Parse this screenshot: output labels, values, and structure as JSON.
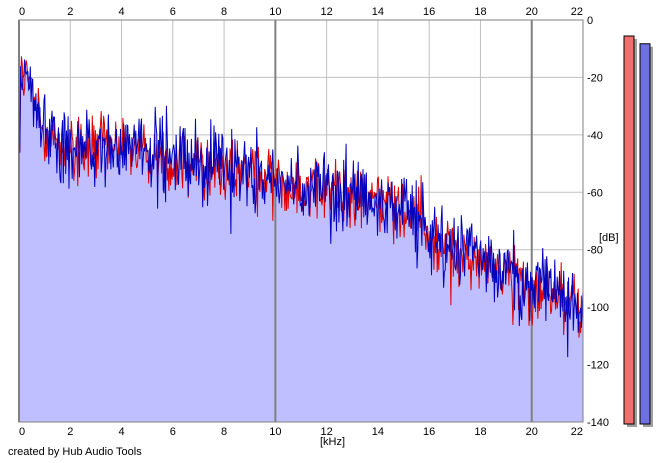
{
  "credit": "created by Hub Audio Tools",
  "chart_data": {
    "type": "area",
    "title": "",
    "xlabel": "[kHz]",
    "ylabel": "[dB]",
    "xlim": [
      0,
      22
    ],
    "ylim": [
      -140,
      0
    ],
    "x_ticks": [
      "0",
      "2",
      "4",
      "6",
      "8",
      "10",
      "12",
      "14",
      "16",
      "18",
      "20",
      "22"
    ],
    "y_ticks": [
      "0",
      "-20",
      "-40",
      "-60",
      "-80",
      "-100",
      "-120",
      "-140"
    ],
    "grid": true,
    "colors": {
      "fill": "#bfbfff",
      "series_red": "#e00000",
      "series_blue": "#0000c0",
      "grid": "#c0c0c0",
      "grid_major": "#808080",
      "meter_red": "#f07070",
      "meter_blue": "#7070e0"
    },
    "envelope": {
      "x": [
        0,
        0.1,
        0.3,
        0.6,
        1,
        2,
        3,
        4,
        5,
        6,
        7,
        8,
        9,
        10,
        11,
        12,
        13,
        14,
        15,
        15.8,
        16,
        17,
        18,
        19,
        20,
        21,
        22
      ],
      "y": [
        -25,
        -15,
        -22,
        -30,
        -40,
        -44,
        -45,
        -44,
        -46,
        -48,
        -50,
        -52,
        -53,
        -55,
        -57,
        -60,
        -61,
        -63,
        -65,
        -67,
        -76,
        -80,
        -83,
        -87,
        -93,
        -97,
        -100
      ]
    },
    "series": [
      {
        "color": "red",
        "noise_db": 7
      },
      {
        "color": "blue",
        "noise_db": 8
      }
    ],
    "level_meters": [
      {
        "color": "red",
        "level": 1.0
      },
      {
        "color": "blue",
        "level": 0.98
      }
    ]
  }
}
